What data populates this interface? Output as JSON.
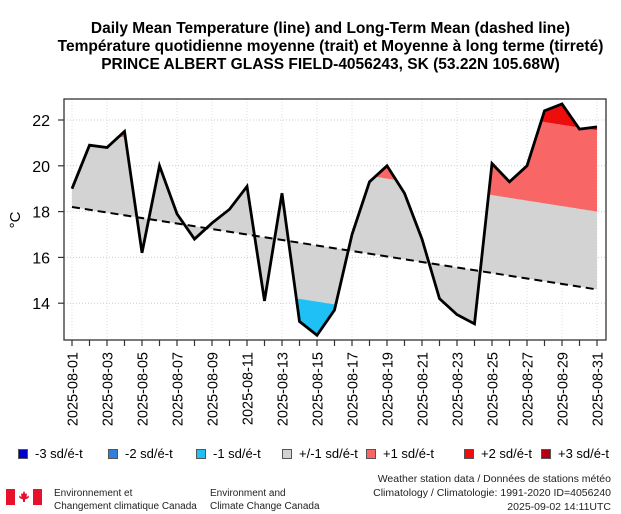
{
  "titles": {
    "line1": "Daily Mean Temperature (line) and Long-Term Mean (dashed line)",
    "line2": "Température quotidienne moyenne (trait) et Moyenne à long terme (tirreté)",
    "line3": "PRINCE ALBERT GLASS FIELD-4056243, SK (53.22N 105.68W)"
  },
  "chart_data": {
    "type": "line",
    "title": "Daily Mean Temperature (line) and Long-Term Mean (dashed line)",
    "xlabel": "",
    "ylabel": "°C",
    "ylim": [
      12.3,
      22.9
    ],
    "yticks": [
      14,
      16,
      18,
      20,
      22
    ],
    "grid": true,
    "x": [
      "2025-08-01",
      "2025-08-02",
      "2025-08-03",
      "2025-08-04",
      "2025-08-05",
      "2025-08-06",
      "2025-08-07",
      "2025-08-08",
      "2025-08-09",
      "2025-08-10",
      "2025-08-11",
      "2025-08-12",
      "2025-08-13",
      "2025-08-14",
      "2025-08-15",
      "2025-08-16",
      "2025-08-17",
      "2025-08-18",
      "2025-08-19",
      "2025-08-20",
      "2025-08-21",
      "2025-08-22",
      "2025-08-23",
      "2025-08-24",
      "2025-08-25",
      "2025-08-26",
      "2025-08-27",
      "2025-08-28",
      "2025-08-29",
      "2025-08-30",
      "2025-08-31"
    ],
    "xtick_labels": [
      "2025-08-01",
      "2025-08-03",
      "2025-08-05",
      "2025-08-07",
      "2025-08-09",
      "2025-08-11",
      "2025-08-13",
      "2025-08-15",
      "2025-08-17",
      "2025-08-19",
      "2025-08-21",
      "2025-08-23",
      "2025-08-25",
      "2025-08-27",
      "2025-08-29",
      "2025-08-31"
    ],
    "series": [
      {
        "name": "Daily Mean Temperature",
        "style": "solid",
        "values": [
          19.0,
          20.9,
          20.8,
          21.5,
          16.2,
          20.0,
          17.9,
          16.8,
          17.5,
          18.1,
          19.1,
          14.1,
          18.8,
          13.2,
          12.6,
          13.7,
          17.0,
          19.3,
          20.0,
          18.8,
          16.8,
          14.2,
          13.5,
          13.1,
          20.1,
          19.3,
          20.0,
          22.4,
          22.7,
          21.6,
          21.7
        ]
      },
      {
        "name": "Long-Term Mean",
        "style": "dashed",
        "start": 18.2,
        "end": 14.6
      }
    ],
    "sd_bands": {
      "upper_1sd_offset": 3.4,
      "upper_2sd_offset": 6.95,
      "lower_1sd_offset": 2.45
    },
    "legend": {
      "placement": "bottom",
      "items": [
        {
          "label": "-3 sd/é-t",
          "color": "#0000cc"
        },
        {
          "label": "-2 sd/é-t",
          "color": "#2f7fdc"
        },
        {
          "label": "-1 sd/é-t",
          "color": "#1ec0f5"
        },
        {
          "label": "+/-1 sd/é-t",
          "color": "#d3d3d3"
        },
        {
          "label": "+1 sd/é-t",
          "color": "#f86666"
        },
        {
          "label": "+2 sd/é-t",
          "color": "#ee0d0d"
        },
        {
          "label": "+3 sd/é-t",
          "color": "#b00010"
        }
      ]
    }
  },
  "footer": {
    "org_fr_line1": "Environnement et",
    "org_fr_line2": "Changement climatique Canada",
    "org_en_line1": "Environment and",
    "org_en_line2": "Climate Change Canada",
    "source_line1": "Weather station data / Données de stations météo",
    "source_line2": "Climatology / Climatologie: 1991-2020 ID=4056240",
    "source_line3": "2025-09-02 14:11UTC"
  }
}
